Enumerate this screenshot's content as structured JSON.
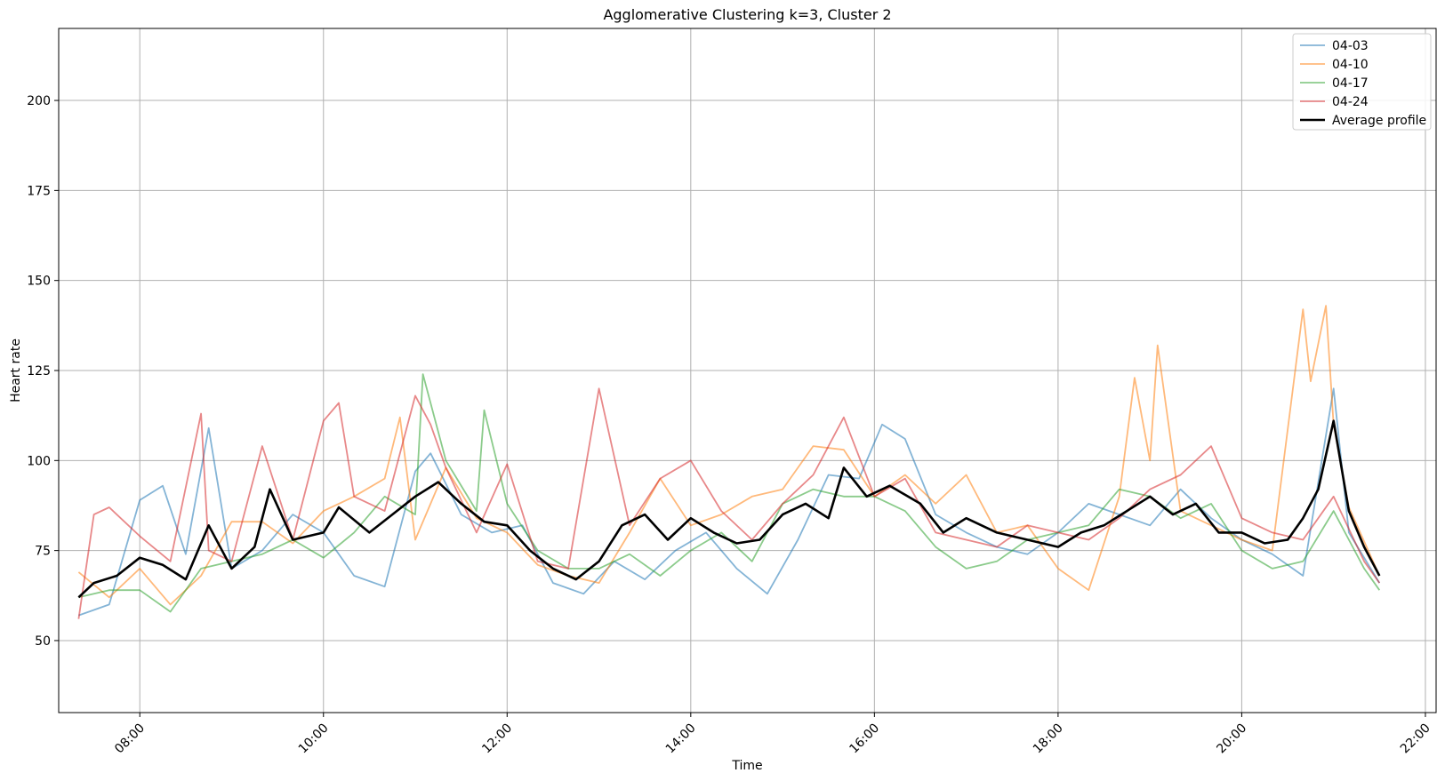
{
  "chart_data": {
    "type": "line",
    "title": "Agglomerative Clustering k=3, Cluster 2",
    "xlabel": "Time",
    "ylabel": "Heart rate",
    "xlim": [
      "07:07",
      "22:07"
    ],
    "ylim": [
      30,
      220
    ],
    "x_ticks": [
      "08:00",
      "10:00",
      "12:00",
      "14:00",
      "16:00",
      "18:00",
      "20:00",
      "22:00"
    ],
    "y_ticks": [
      50,
      75,
      100,
      125,
      150,
      175,
      200
    ],
    "grid": true,
    "legend_position": "top-right",
    "series": [
      {
        "name": "04-03",
        "color": "#1f77b4",
        "x": [
          "07:20",
          "07:40",
          "08:00",
          "08:15",
          "08:30",
          "08:45",
          "09:00",
          "09:20",
          "09:40",
          "10:00",
          "10:20",
          "10:40",
          "11:00",
          "11:10",
          "11:30",
          "11:50",
          "12:10",
          "12:30",
          "12:50",
          "13:10",
          "13:30",
          "13:50",
          "14:10",
          "14:30",
          "14:50",
          "15:10",
          "15:30",
          "15:50",
          "16:05",
          "16:20",
          "16:40",
          "17:00",
          "17:20",
          "17:40",
          "18:00",
          "18:20",
          "18:40",
          "19:00",
          "19:20",
          "19:40",
          "20:00",
          "20:20",
          "20:40",
          "21:00",
          "21:10",
          "21:30"
        ],
        "values": [
          57,
          60,
          89,
          93,
          74,
          109,
          70,
          75,
          85,
          80,
          68,
          65,
          97,
          102,
          85,
          80,
          82,
          66,
          63,
          72,
          67,
          75,
          80,
          70,
          63,
          78,
          96,
          95,
          110,
          106,
          85,
          80,
          76,
          74,
          80,
          88,
          85,
          82,
          92,
          84,
          78,
          74,
          68,
          120,
          80,
          66
        ]
      },
      {
        "name": "04-10",
        "color": "#ff7f0e",
        "x": [
          "07:20",
          "07:40",
          "08:00",
          "08:20",
          "08:40",
          "09:00",
          "09:20",
          "09:40",
          "10:00",
          "10:20",
          "10:40",
          "10:50",
          "11:00",
          "11:20",
          "11:40",
          "12:00",
          "12:20",
          "12:40",
          "13:00",
          "13:20",
          "13:40",
          "14:00",
          "14:20",
          "14:40",
          "15:00",
          "15:20",
          "15:40",
          "16:00",
          "16:20",
          "16:40",
          "17:00",
          "17:20",
          "17:40",
          "18:00",
          "18:20",
          "18:40",
          "18:50",
          "19:00",
          "19:05",
          "19:20",
          "19:40",
          "20:00",
          "20:20",
          "20:40",
          "20:45",
          "20:55",
          "21:00",
          "21:10",
          "21:30"
        ],
        "values": [
          69,
          62,
          70,
          60,
          68,
          83,
          83,
          77,
          86,
          90,
          95,
          112,
          78,
          98,
          84,
          80,
          71,
          68,
          66,
          80,
          95,
          82,
          85,
          90,
          92,
          104,
          103,
          90,
          96,
          88,
          96,
          80,
          82,
          70,
          64,
          90,
          123,
          100,
          132,
          86,
          82,
          78,
          75,
          142,
          122,
          143,
          110,
          87,
          68
        ]
      },
      {
        "name": "04-17",
        "color": "#2ca02c",
        "x": [
          "07:20",
          "07:40",
          "08:00",
          "08:20",
          "08:40",
          "09:00",
          "09:20",
          "09:40",
          "10:00",
          "10:20",
          "10:40",
          "11:00",
          "11:05",
          "11:20",
          "11:40",
          "11:45",
          "12:00",
          "12:20",
          "12:40",
          "13:00",
          "13:20",
          "13:40",
          "14:00",
          "14:20",
          "14:40",
          "15:00",
          "15:20",
          "15:40",
          "16:00",
          "16:20",
          "16:40",
          "17:00",
          "17:20",
          "17:40",
          "18:00",
          "18:20",
          "18:40",
          "19:00",
          "19:20",
          "19:40",
          "20:00",
          "20:20",
          "20:40",
          "21:00",
          "21:20",
          "21:30"
        ],
        "values": [
          62,
          64,
          64,
          58,
          70,
          72,
          74,
          78,
          73,
          80,
          90,
          85,
          124,
          100,
          86,
          114,
          88,
          75,
          70,
          70,
          74,
          68,
          75,
          80,
          72,
          88,
          92,
          90,
          90,
          86,
          76,
          70,
          72,
          78,
          80,
          82,
          92,
          90,
          84,
          88,
          75,
          70,
          72,
          86,
          70,
          64
        ]
      },
      {
        "name": "04-24",
        "color": "#d62728",
        "x": [
          "07:20",
          "07:30",
          "07:40",
          "08:00",
          "08:20",
          "08:40",
          "08:45",
          "09:00",
          "09:20",
          "09:40",
          "10:00",
          "10:10",
          "10:20",
          "10:40",
          "11:00",
          "11:10",
          "11:20",
          "11:40",
          "12:00",
          "12:20",
          "12:40",
          "13:00",
          "13:20",
          "13:40",
          "14:00",
          "14:20",
          "14:40",
          "15:00",
          "15:20",
          "15:40",
          "16:00",
          "16:20",
          "16:40",
          "17:00",
          "17:20",
          "17:40",
          "18:00",
          "18:20",
          "18:40",
          "19:00",
          "19:20",
          "19:40",
          "20:00",
          "20:20",
          "20:40",
          "21:00",
          "21:20",
          "21:30"
        ],
        "values": [
          56,
          85,
          87,
          79,
          72,
          113,
          75,
          72,
          104,
          78,
          111,
          116,
          90,
          86,
          118,
          110,
          98,
          80,
          99,
          72,
          70,
          120,
          82,
          95,
          100,
          86,
          78,
          88,
          96,
          112,
          90,
          95,
          80,
          78,
          76,
          82,
          80,
          78,
          84,
          92,
          96,
          104,
          84,
          80,
          78,
          90,
          72,
          66
        ]
      },
      {
        "name": "Average profile",
        "color": "#000000",
        "x": [
          "07:20",
          "07:30",
          "07:45",
          "08:00",
          "08:15",
          "08:30",
          "08:45",
          "09:00",
          "09:15",
          "09:25",
          "09:40",
          "10:00",
          "10:10",
          "10:30",
          "10:45",
          "11:00",
          "11:15",
          "11:30",
          "11:45",
          "12:00",
          "12:15",
          "12:30",
          "12:45",
          "13:00",
          "13:15",
          "13:30",
          "13:45",
          "14:00",
          "14:15",
          "14:30",
          "14:45",
          "15:00",
          "15:15",
          "15:30",
          "15:40",
          "15:55",
          "16:10",
          "16:30",
          "16:45",
          "17:00",
          "17:20",
          "17:40",
          "18:00",
          "18:15",
          "18:30",
          "18:45",
          "19:00",
          "19:15",
          "19:30",
          "19:45",
          "20:00",
          "20:15",
          "20:30",
          "20:40",
          "20:50",
          "21:00",
          "21:10",
          "21:20",
          "21:30"
        ],
        "values": [
          62,
          66,
          68,
          73,
          71,
          67,
          82,
          70,
          76,
          92,
          78,
          80,
          87,
          80,
          85,
          90,
          94,
          88,
          83,
          82,
          75,
          70,
          67,
          72,
          82,
          85,
          78,
          84,
          80,
          77,
          78,
          85,
          88,
          84,
          98,
          90,
          93,
          88,
          80,
          84,
          80,
          78,
          76,
          80,
          82,
          86,
          90,
          85,
          88,
          80,
          80,
          77,
          78,
          84,
          92,
          111,
          86,
          76,
          68
        ]
      }
    ]
  }
}
